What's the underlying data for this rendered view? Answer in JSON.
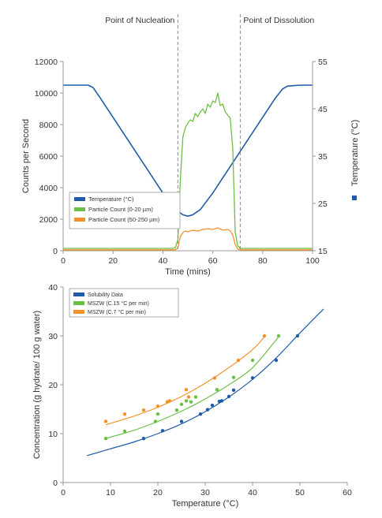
{
  "chart_data": [
    {
      "type": "line",
      "title": "",
      "annotations": [
        "Point of Nucleation",
        "Point of Dissolution"
      ],
      "annotation_x": [
        46,
        71
      ],
      "xlabel": "Time (mins)",
      "ylabel": "Counts per Second",
      "y2label": "Temperature (°C)",
      "xlim": [
        0,
        100
      ],
      "ylim": [
        0,
        12000
      ],
      "y2lim": [
        15,
        55
      ],
      "xticks": [
        0,
        20,
        40,
        60,
        80,
        100
      ],
      "yticks": [
        0,
        2000,
        4000,
        6000,
        8000,
        10000,
        12000
      ],
      "y2ticks": [
        15,
        25,
        35,
        45,
        55
      ],
      "grid": false,
      "legend_position": "lower-left",
      "series": [
        {
          "name": "Temperature (°C)",
          "axis": "right",
          "color": "#1f5ba8",
          "x": [
            0,
            5,
            10,
            12,
            15,
            20,
            25,
            30,
            35,
            40,
            45,
            48,
            50,
            52,
            55,
            60,
            65,
            70,
            75,
            80,
            85,
            88,
            90,
            95,
            100
          ],
          "y": [
            50,
            50,
            50,
            49.5,
            47.2,
            43.2,
            39.2,
            35.2,
            31.2,
            27.2,
            23.7,
            22.6,
            22.3,
            22.6,
            23.7,
            27.2,
            31.2,
            35.2,
            39.2,
            43.2,
            47.2,
            49.2,
            49.8,
            50,
            50
          ]
        },
        {
          "name": "Particle Count (0-20 µm)",
          "axis": "left",
          "color": "#6cbf45",
          "x": [
            0,
            10,
            20,
            30,
            40,
            44,
            45,
            46,
            47,
            48,
            49,
            50,
            51,
            52,
            53,
            54,
            55,
            56,
            57,
            58,
            59,
            60,
            61,
            62,
            63,
            64,
            65,
            66,
            67,
            68,
            69,
            70,
            71,
            72,
            80,
            90,
            100
          ],
          "y": [
            150,
            150,
            150,
            150,
            150,
            150,
            200,
            700,
            4500,
            7200,
            7800,
            8100,
            8300,
            8200,
            8700,
            8500,
            8800,
            9000,
            8700,
            9300,
            9100,
            9500,
            9400,
            10000,
            9200,
            9300,
            8800,
            8600,
            8400,
            6500,
            1200,
            300,
            150,
            150,
            150,
            150,
            150
          ]
        },
        {
          "name": "Particle Count (50-250 µm)",
          "axis": "left",
          "color": "#f4922a",
          "x": [
            0,
            10,
            20,
            30,
            40,
            45,
            46,
            47,
            48,
            49,
            50,
            52,
            54,
            56,
            58,
            60,
            62,
            64,
            66,
            67,
            68,
            69,
            70,
            71,
            80,
            90,
            100
          ],
          "y": [
            60,
            60,
            60,
            60,
            60,
            60,
            200,
            900,
            1150,
            1250,
            1200,
            1300,
            1250,
            1350,
            1400,
            1350,
            1450,
            1300,
            1350,
            1250,
            1000,
            400,
            100,
            60,
            60,
            60,
            60
          ]
        }
      ]
    },
    {
      "type": "scatter",
      "title": "",
      "xlabel": "Temperature (°C)",
      "ylabel": "Concentration (g hydrate/ 100 g water)",
      "xlim": [
        0,
        60
      ],
      "ylim": [
        0,
        40
      ],
      "xticks": [
        0,
        10,
        20,
        30,
        40,
        50,
        60
      ],
      "yticks": [
        0,
        10,
        20,
        30,
        40
      ],
      "grid": false,
      "legend_position": "top-left",
      "series": [
        {
          "name": "Solubility Data",
          "color": "#1f5ba8",
          "points": [
            [
              17,
              9
            ],
            [
              21,
              10.6
            ],
            [
              25,
              12.5
            ],
            [
              29,
              14
            ],
            [
              30.5,
              14.9
            ],
            [
              31.5,
              15.8
            ],
            [
              33,
              16.6
            ],
            [
              33.5,
              16.7
            ],
            [
              35,
              17.6
            ],
            [
              36,
              18.9
            ],
            [
              40,
              21.4
            ],
            [
              45,
              25
            ],
            [
              49.5,
              30
            ]
          ],
          "fit": [
            [
              5,
              5.5
            ],
            [
              10,
              6.9
            ],
            [
              15,
              8.3
            ],
            [
              20,
              10
            ],
            [
              25,
              12
            ],
            [
              30,
              14.5
            ],
            [
              35,
              17.5
            ],
            [
              40,
              21.1
            ],
            [
              45,
              25.5
            ],
            [
              50,
              30.6
            ],
            [
              55,
              35.5
            ]
          ]
        },
        {
          "name": "MSZW (C.15 °C per min)",
          "color": "#6cbf45",
          "points": [
            [
              9,
              9
            ],
            [
              13,
              10.5
            ],
            [
              19.5,
              12.5
            ],
            [
              20,
              14
            ],
            [
              24,
              14.8
            ],
            [
              25,
              16
            ],
            [
              26,
              16.7
            ],
            [
              27,
              16.5
            ],
            [
              28,
              17.5
            ],
            [
              32.5,
              19
            ],
            [
              36,
              21.5
            ],
            [
              40,
              25
            ],
            [
              45.5,
              30
            ]
          ],
          "fit": [
            [
              9,
              9
            ],
            [
              15,
              10.7
            ],
            [
              20,
              12.5
            ],
            [
              25,
              14.6
            ],
            [
              30,
              17.1
            ],
            [
              35,
              20
            ],
            [
              40,
              23.5
            ],
            [
              45.5,
              29.8
            ]
          ]
        },
        {
          "name": "MSZW (C.7 °C per min)",
          "color": "#f4922a",
          "points": [
            [
              9,
              12.5
            ],
            [
              13,
              14
            ],
            [
              17,
              14.8
            ],
            [
              20,
              15.6
            ],
            [
              22,
              16.5
            ],
            [
              22.5,
              16.7
            ],
            [
              26,
              19
            ],
            [
              26.5,
              17.5
            ],
            [
              32,
              21.4
            ],
            [
              37,
              25
            ],
            [
              42.5,
              30
            ]
          ],
          "fit": [
            [
              9,
              11.8
            ],
            [
              15,
              13.6
            ],
            [
              20,
              15.4
            ],
            [
              25,
              17.6
            ],
            [
              30,
              20.3
            ],
            [
              35,
              23.5
            ],
            [
              40,
              27.2
            ],
            [
              42.5,
              29.8
            ]
          ]
        }
      ]
    }
  ]
}
